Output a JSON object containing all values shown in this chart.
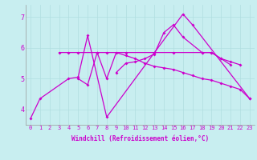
{
  "background_color": "#c8eef0",
  "grid_color": "#b0dde0",
  "line_color": "#cc00cc",
  "xlim": [
    -0.5,
    23.5
  ],
  "ylim": [
    3.5,
    7.4
  ],
  "yticks": [
    4,
    5,
    6,
    7
  ],
  "xticks": [
    0,
    1,
    2,
    3,
    4,
    5,
    6,
    7,
    8,
    9,
    10,
    11,
    12,
    13,
    14,
    15,
    16,
    17,
    18,
    19,
    20,
    21,
    22,
    23
  ],
  "xlabel": "Windchill (Refroidissement éolien,°C)",
  "line1_x": [
    0,
    1,
    4,
    5,
    6,
    8,
    16,
    17,
    23
  ],
  "line1_y": [
    3.7,
    4.35,
    5.0,
    5.05,
    6.4,
    3.75,
    7.1,
    6.75,
    4.35
  ],
  "line2_x": [
    3,
    4,
    5,
    7,
    8,
    10,
    13,
    15,
    18,
    19,
    20,
    21,
    22
  ],
  "line2_y": [
    5.85,
    5.85,
    5.85,
    5.85,
    5.85,
    5.85,
    5.85,
    5.85,
    5.85,
    5.85,
    5.65,
    5.55,
    5.45
  ],
  "line3_x": [
    5,
    6,
    7,
    8,
    9,
    10,
    11,
    12,
    13,
    14,
    15,
    16,
    17,
    18,
    19,
    20,
    21,
    22,
    23
  ],
  "line3_y": [
    5.0,
    4.8,
    5.85,
    5.0,
    5.85,
    5.75,
    5.65,
    5.5,
    5.4,
    5.35,
    5.3,
    5.2,
    5.1,
    5.0,
    4.95,
    4.85,
    4.75,
    4.65,
    4.35
  ],
  "line4_x": [
    9,
    10,
    11,
    12,
    13,
    14,
    15,
    16,
    18,
    19,
    20,
    21
  ],
  "line4_y": [
    5.2,
    5.5,
    5.55,
    5.65,
    5.8,
    6.5,
    6.75,
    6.35,
    5.85,
    5.85,
    5.65,
    5.45
  ],
  "marker_size": 2.0,
  "line_width": 0.9,
  "tick_fontsize": 5.0,
  "xlabel_fontsize": 5.5
}
